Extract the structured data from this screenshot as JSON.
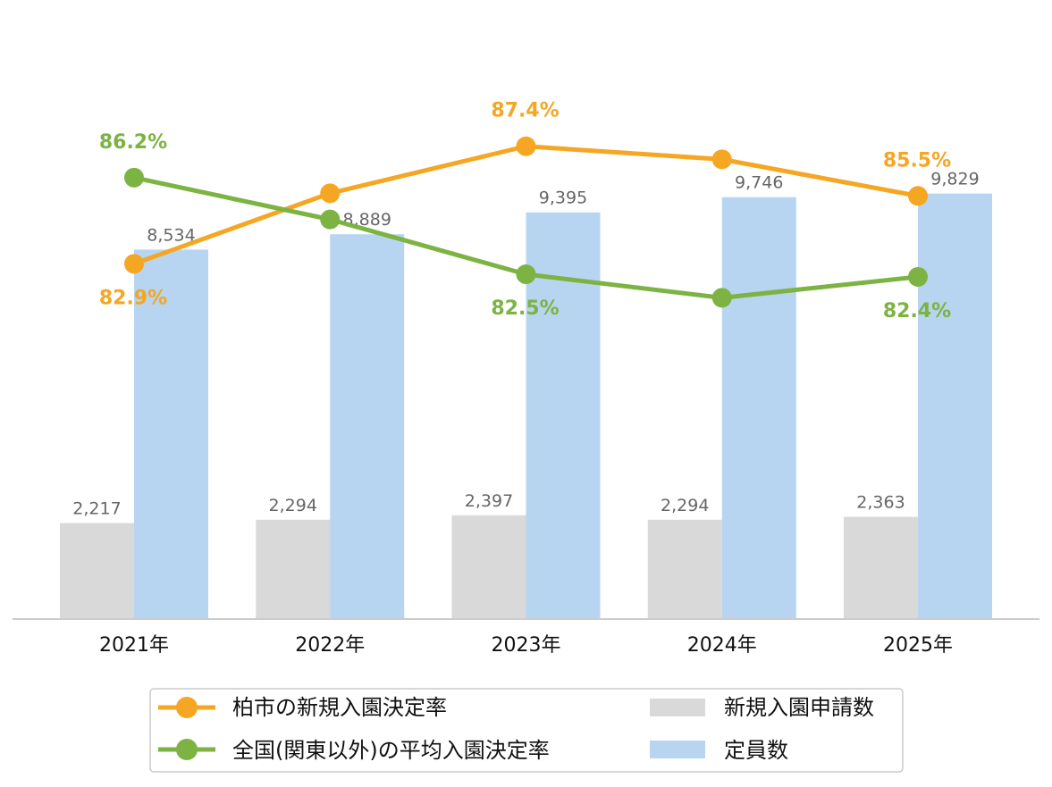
{
  "chart_data": {
    "type": "bar",
    "title": "",
    "xlabel": "",
    "ylabel": "",
    "categories": [
      "2021年",
      "2022年",
      "2023年",
      "2024年",
      "2025年"
    ],
    "bar_series": [
      {
        "name": "新規入園申請数",
        "color": "#d9d9d9",
        "values": [
          2217,
          2294,
          2397,
          2294,
          2363
        ],
        "labels": [
          "2,217",
          "2,294",
          "2,397",
          "2,294",
          "2,363"
        ]
      },
      {
        "name": "定員数",
        "color": "#b7d5f0",
        "values": [
          8534,
          8889,
          9395,
          9746,
          9829
        ],
        "labels": [
          "8,534",
          "8,889",
          "9,395",
          "9,746",
          "9,829"
        ]
      }
    ],
    "bar_ylim": [
      0,
      14300
    ],
    "line_series": [
      {
        "name": "柏市の新規入園決定率",
        "color": "#f5a623",
        "values": [
          82.9,
          85.6,
          87.4,
          86.9,
          85.5
        ],
        "labels": [
          "82.9%",
          "",
          "87.4%",
          "",
          "85.5%"
        ]
      },
      {
        "name": "全国(関東以外)の平均入園決定率",
        "color": "#7cb342",
        "values": [
          86.2,
          84.6,
          82.5,
          81.6,
          82.4
        ],
        "labels": [
          "86.2%",
          "",
          "82.5%",
          "",
          "82.4%"
        ]
      }
    ],
    "line_ylim": [
      69.3,
      93.0
    ],
    "grid": false,
    "legend_position": "bottom"
  }
}
